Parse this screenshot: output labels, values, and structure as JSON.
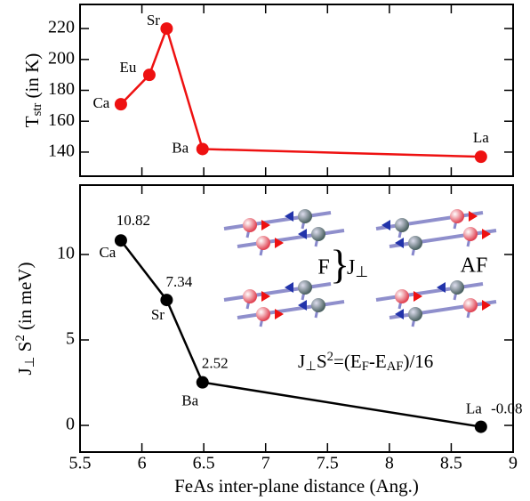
{
  "chart_data": [
    {
      "type": "line",
      "ylabel": [
        {
          "text": "T"
        },
        {
          "text": "str",
          "shift": "sub"
        },
        {
          "text": " (in K)"
        }
      ],
      "x": [
        5.83,
        6.06,
        6.2,
        6.49,
        8.74
      ],
      "series": [
        {
          "color": "#ee1111",
          "values": [
            171,
            190,
            220,
            142,
            137
          ],
          "labels": [
            "Ca",
            "Eu",
            "Sr",
            "Ba",
            "La"
          ]
        }
      ],
      "xlim": [
        5.5,
        9
      ],
      "ylim": [
        124.4,
        235.6
      ],
      "yticks": [
        140,
        160,
        180,
        200,
        220
      ]
    },
    {
      "type": "line",
      "ylabel": [
        {
          "text": "J"
        },
        {
          "text": "⊥",
          "shift": "sub"
        },
        {
          "text": " S"
        },
        {
          "text": "2",
          "shift": "super"
        },
        {
          "text": " (in meV)"
        }
      ],
      "xlabel": "FeAs inter-plane distance (Ang.)",
      "x": [
        5.83,
        6.2,
        6.49,
        8.74
      ],
      "series": [
        {
          "color": "#000000",
          "values": [
            10.82,
            7.34,
            2.52,
            -0.08
          ],
          "labels": [
            "Ca",
            "Sr",
            "Ba",
            "La"
          ]
        }
      ],
      "xlim": [
        5.5,
        9
      ],
      "ylim": [
        -1.56,
        14.06
      ],
      "yticks": [
        0,
        5,
        10
      ],
      "xticks": [
        5.5,
        6,
        6.5,
        7,
        7.5,
        8,
        8.5,
        9
      ],
      "inset": {
        "f": "F",
        "af": "AF",
        "j": [
          {
            "text": "J"
          },
          {
            "text": "⊥",
            "shift": "sub"
          }
        ],
        "formula": [
          {
            "text": "J"
          },
          {
            "text": "⊥",
            "shift": "sub"
          },
          {
            "text": "S"
          },
          {
            "text": "2",
            "shift": "super"
          },
          {
            "text": "=(E"
          },
          {
            "text": "F",
            "shift": "sub"
          },
          {
            "text": "-E"
          },
          {
            "text": "AF",
            "shift": "sub"
          },
          {
            "text": ")/16"
          }
        ]
      }
    }
  ]
}
